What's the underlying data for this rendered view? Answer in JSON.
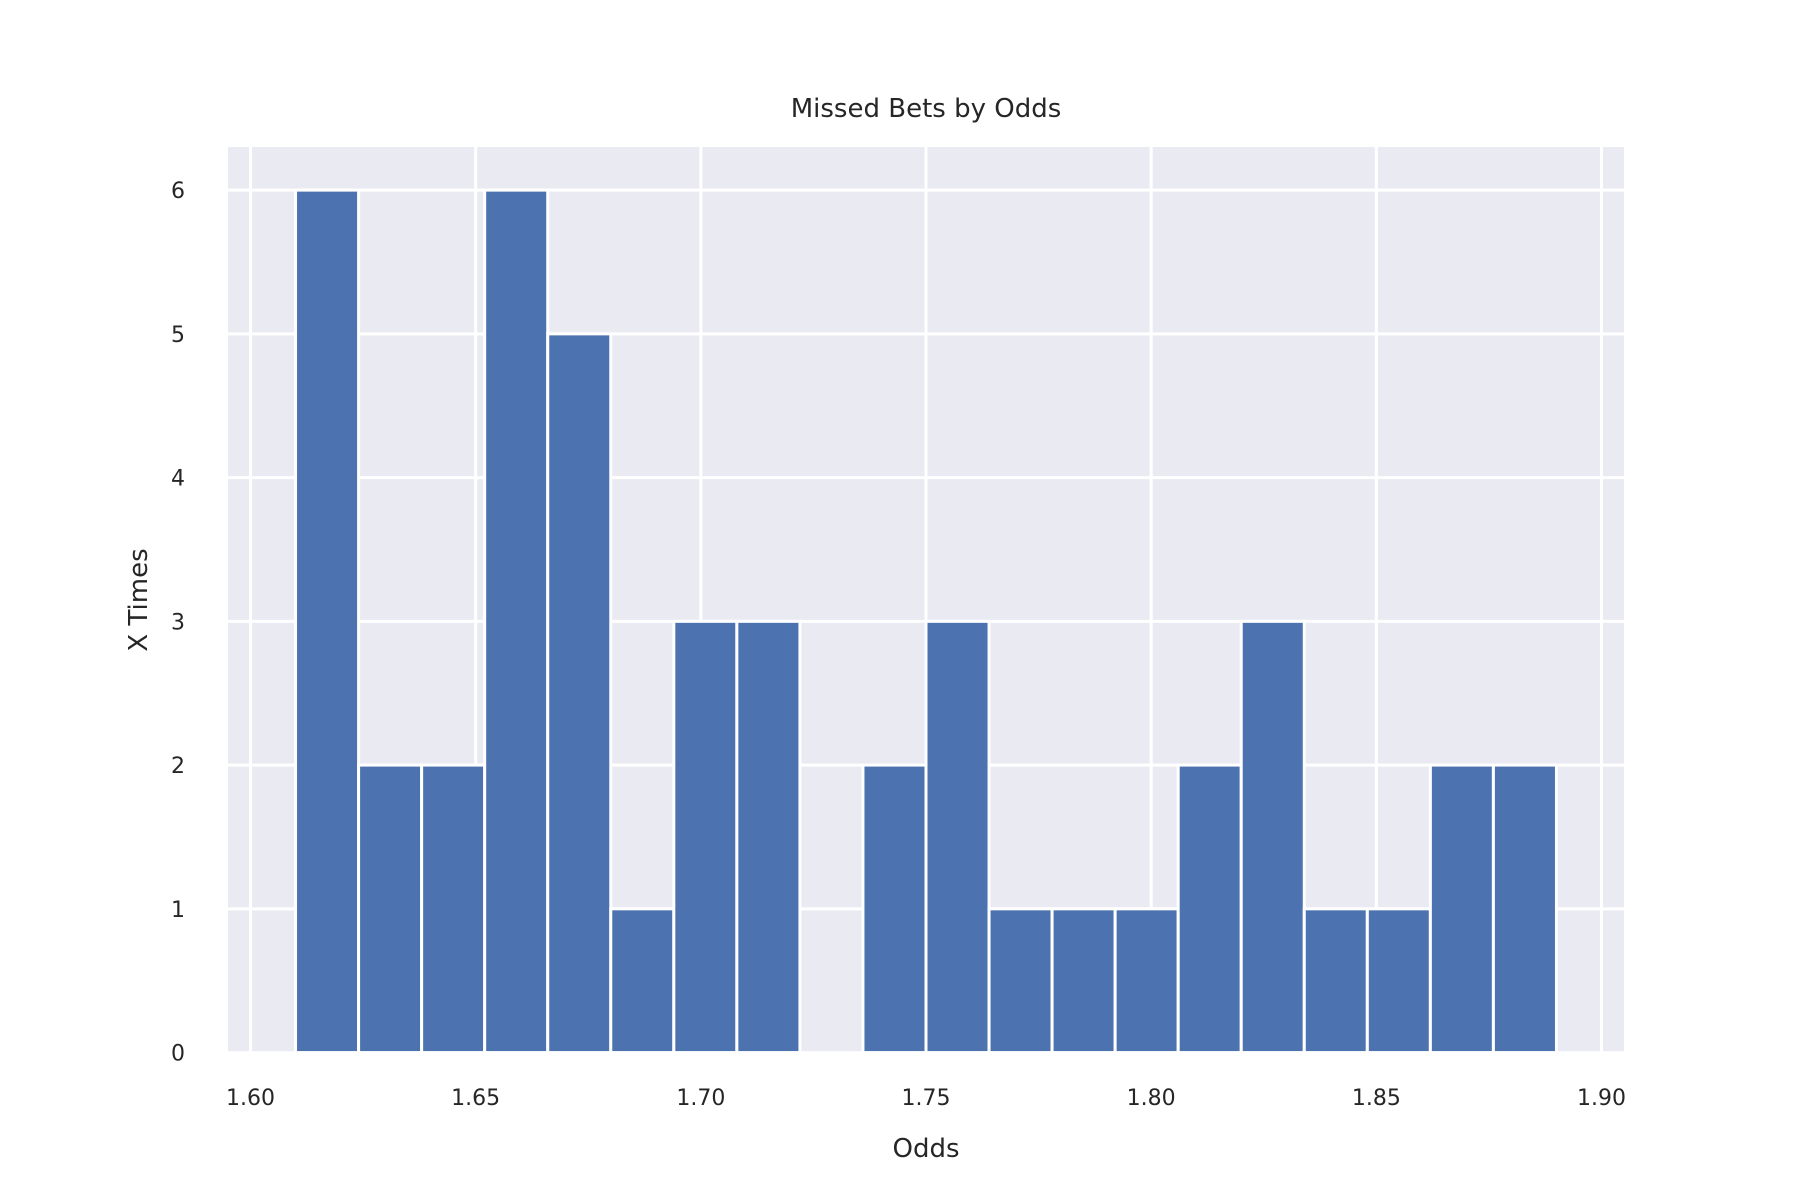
{
  "chart_data": {
    "type": "bar",
    "title": "Missed Bets by Odds",
    "xlabel": "Odds",
    "ylabel": "X Times",
    "xlim": [
      1.595,
      1.905
    ],
    "ylim": [
      -0.01,
      6.3
    ],
    "xticks": [
      1.6,
      1.65,
      1.7,
      1.75,
      1.8,
      1.85,
      1.9
    ],
    "xtick_labels": [
      "1.60",
      "1.65",
      "1.70",
      "1.75",
      "1.80",
      "1.85",
      "1.90"
    ],
    "yticks": [
      0,
      1,
      2,
      3,
      4,
      5,
      6
    ],
    "ytick_labels": [
      "0",
      "1",
      "2",
      "3",
      "4",
      "5",
      "6"
    ],
    "grid": true,
    "background": "#eaeaf2",
    "bar_color": "#4c72b0",
    "bin_start": 1.61,
    "bin_width": 0.014,
    "values": [
      6,
      2,
      2,
      6,
      5,
      1,
      3,
      3,
      0,
      2,
      3,
      1,
      1,
      1,
      2,
      3,
      1,
      1,
      2,
      2
    ]
  }
}
